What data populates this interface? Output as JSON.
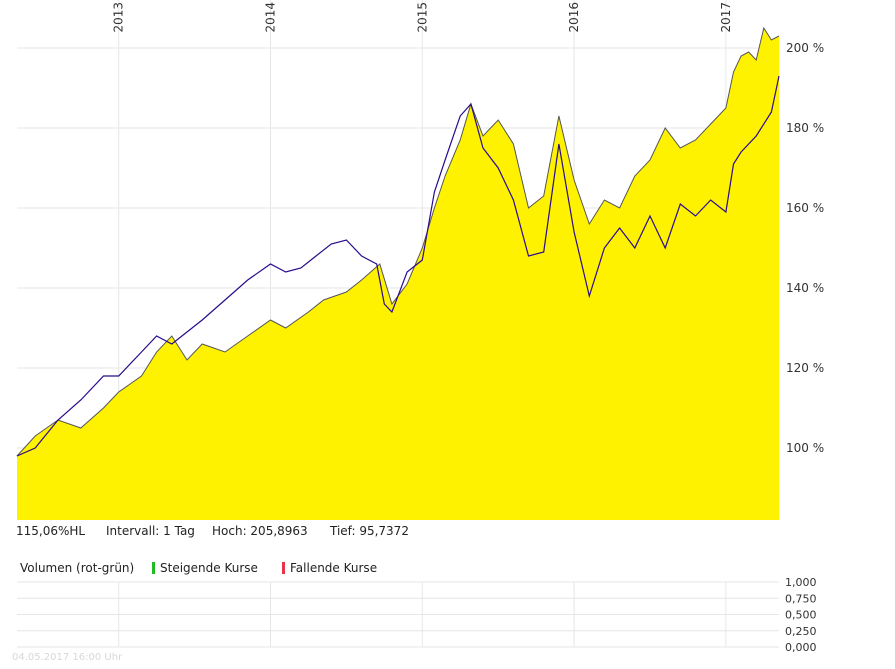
{
  "colors": {
    "area_fill": "#fff200",
    "area_stroke": "#555555",
    "line": "#2a0a8c",
    "grid": "#e6e6e6",
    "rising": "#22bb22",
    "falling": "#e8334a"
  },
  "info": {
    "current": "115,06%HL",
    "interval": "Intervall: 1 Tag",
    "high": "Hoch: 205,8963",
    "low": "Tief: 95,7372"
  },
  "volume": {
    "title": "Volumen (rot-grün)",
    "rising_label": "Steigende Kurse",
    "falling_label": "Fallende Kurse",
    "axis_ticks": [
      "1,000",
      "0,750",
      "0,500",
      "0,250",
      "0,000"
    ],
    "ylim": [
      0,
      1
    ]
  },
  "footer": "04.05.2017 16:00 Uhr",
  "chart_data": {
    "type": "area",
    "x_year_labels": [
      "2013",
      "2014",
      "2015",
      "2016",
      "2017"
    ],
    "x_year_positions": [
      2013.0,
      2014.0,
      2015.0,
      2016.0,
      2017.0
    ],
    "xlim": [
      2012.33,
      2017.35
    ],
    "ylim": [
      82,
      212
    ],
    "y_ticks": [
      100,
      120,
      140,
      160,
      180,
      200
    ],
    "y_tick_labels": [
      "100 %",
      "120 %",
      "140 %",
      "160 %",
      "180 %",
      "200 %"
    ],
    "grid": true,
    "series": [
      {
        "type": "area",
        "x": [
          2012.33,
          2012.45,
          2012.6,
          2012.75,
          2012.9,
          2013.0,
          2013.15,
          2013.25,
          2013.35,
          2013.45,
          2013.55,
          2013.7,
          2013.85,
          2014.0,
          2014.1,
          2014.25,
          2014.35,
          2014.5,
          2014.6,
          2014.72,
          2014.8,
          2014.9,
          2015.0,
          2015.08,
          2015.15,
          2015.25,
          2015.32,
          2015.4,
          2015.5,
          2015.6,
          2015.7,
          2015.8,
          2015.9,
          2016.0,
          2016.1,
          2016.2,
          2016.3,
          2016.4,
          2016.5,
          2016.6,
          2016.7,
          2016.8,
          2016.9,
          2017.0,
          2017.05,
          2017.1,
          2017.15,
          2017.2,
          2017.25,
          2017.3,
          2017.35
        ],
        "y": [
          98,
          103,
          107,
          105,
          110,
          114,
          118,
          124,
          128,
          122,
          126,
          124,
          128,
          132,
          130,
          134,
          137,
          139,
          142,
          146,
          136,
          141,
          150,
          160,
          168,
          177,
          186,
          178,
          182,
          176,
          160,
          163,
          183,
          167,
          156,
          162,
          160,
          168,
          172,
          180,
          175,
          177,
          181,
          185,
          194,
          198,
          199,
          197,
          205,
          202,
          203
        ]
      },
      {
        "type": "line",
        "x": [
          2012.33,
          2012.45,
          2012.6,
          2012.75,
          2012.9,
          2013.0,
          2013.15,
          2013.25,
          2013.35,
          2013.45,
          2013.55,
          2013.7,
          2013.85,
          2014.0,
          2014.1,
          2014.2,
          2014.3,
          2014.4,
          2014.5,
          2014.6,
          2014.7,
          2014.75,
          2014.8,
          2014.9,
          2015.0,
          2015.08,
          2015.15,
          2015.25,
          2015.32,
          2015.4,
          2015.5,
          2015.6,
          2015.7,
          2015.8,
          2015.9,
          2016.0,
          2016.1,
          2016.2,
          2016.3,
          2016.4,
          2016.5,
          2016.6,
          2016.7,
          2016.8,
          2016.9,
          2017.0,
          2017.05,
          2017.1,
          2017.2,
          2017.3,
          2017.35
        ],
        "y": [
          98,
          100,
          107,
          112,
          118,
          118,
          124,
          128,
          126,
          129,
          132,
          137,
          142,
          146,
          144,
          145,
          148,
          151,
          152,
          148,
          146,
          136,
          134,
          144,
          147,
          164,
          172,
          183,
          186,
          175,
          170,
          162,
          148,
          149,
          176,
          154,
          138,
          150,
          155,
          150,
          158,
          150,
          161,
          158,
          162,
          159,
          171,
          174,
          178,
          184,
          193
        ]
      }
    ]
  }
}
